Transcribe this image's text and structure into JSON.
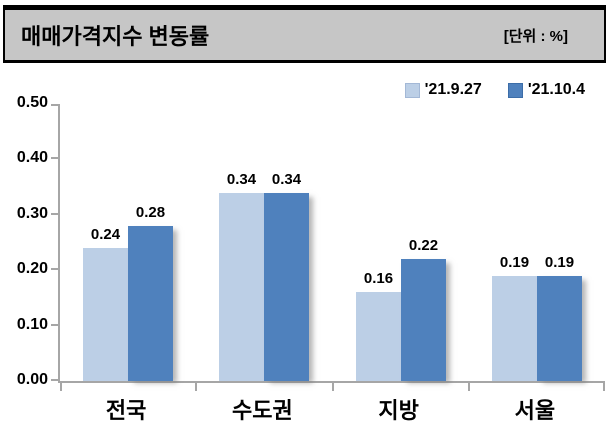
{
  "header": {
    "title": "매매가격지수 변동률",
    "unit_label": "[단위 : %]"
  },
  "colors": {
    "header_bg": "#C6C6C6",
    "axis": "#A6A6A6",
    "series_light": "#BCCFE6",
    "series_dark": "#4F81BD"
  },
  "chart_data": {
    "type": "bar",
    "title": "매매가격지수 변동률",
    "unit": "%",
    "categories": [
      "전국",
      "수도권",
      "지방",
      "서울"
    ],
    "series": [
      {
        "name": "'21.9.27",
        "color": "#BCCFE6",
        "values": [
          0.24,
          0.34,
          0.16,
          0.19
        ]
      },
      {
        "name": "'21.10.4",
        "color": "#4F81BD",
        "values": [
          0.28,
          0.34,
          0.22,
          0.19
        ]
      }
    ],
    "ylim": [
      0,
      0.5
    ],
    "ytick_labels": [
      "0.00",
      "0.10",
      "0.20",
      "0.30",
      "0.40",
      "0.50"
    ],
    "grid": false,
    "data_labels": true,
    "legend_position": "top-right"
  }
}
